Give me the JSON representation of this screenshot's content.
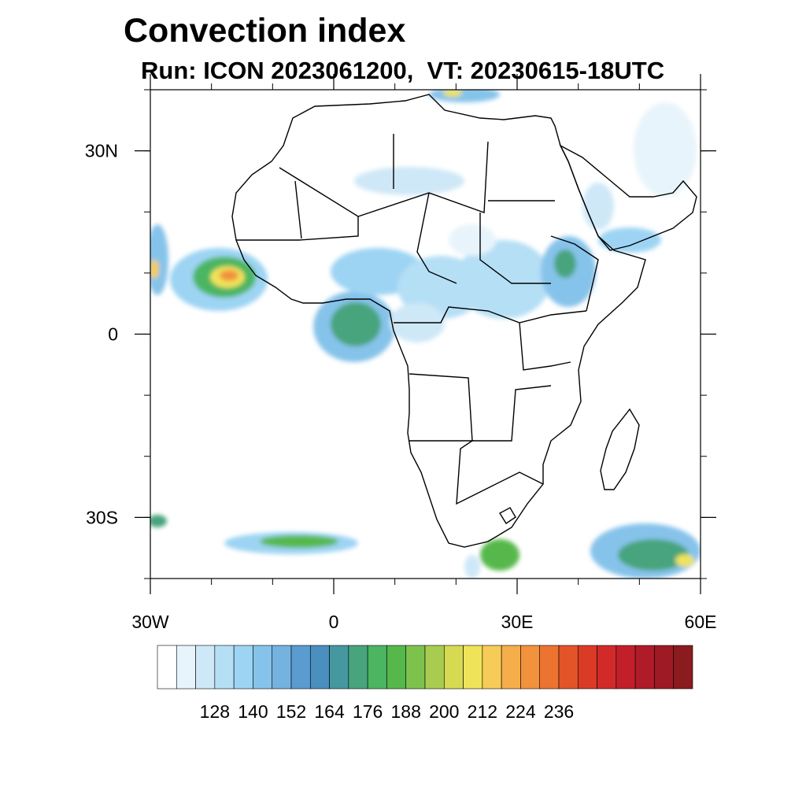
{
  "title": "Convection index",
  "subtitle": "Run: ICON 2023061200,  VT: 20230615-18UTC",
  "map": {
    "region": "Africa",
    "lon_range": [
      -30,
      60
    ],
    "lat_range": [
      -40,
      40
    ],
    "x_ticks": [
      {
        "value": -30,
        "label": "30W"
      },
      {
        "value": 0,
        "label": "0"
      },
      {
        "value": 30,
        "label": "30E"
      },
      {
        "value": 60,
        "label": "60E"
      }
    ],
    "y_ticks": [
      {
        "value": 30,
        "label": "30N"
      },
      {
        "value": 0,
        "label": "0"
      },
      {
        "value": -30,
        "label": "30S"
      }
    ]
  },
  "colorbar": {
    "colors": [
      "#ffffff",
      "#e8f4fb",
      "#cfe8f7",
      "#b5dff5",
      "#9dd4f3",
      "#86c3ea",
      "#74b2e0",
      "#5a9bd0",
      "#4a8fbd",
      "#4698a0",
      "#47a47d",
      "#4bb562",
      "#56b84b",
      "#7ec24e",
      "#a8cc4f",
      "#d5da52",
      "#efe35a",
      "#f6cb58",
      "#f5ae4a",
      "#f2923c",
      "#ed7330",
      "#e45429",
      "#da3b27",
      "#d22a29",
      "#c21f2b",
      "#b01b29",
      "#9e1a24",
      "#8a1b1e"
    ],
    "labels": [
      "128",
      "140",
      "152",
      "164",
      "176",
      "188",
      "200",
      "212",
      "224",
      "236"
    ],
    "label_values": [
      128,
      140,
      152,
      164,
      176,
      188,
      200,
      212,
      224,
      236
    ]
  }
}
